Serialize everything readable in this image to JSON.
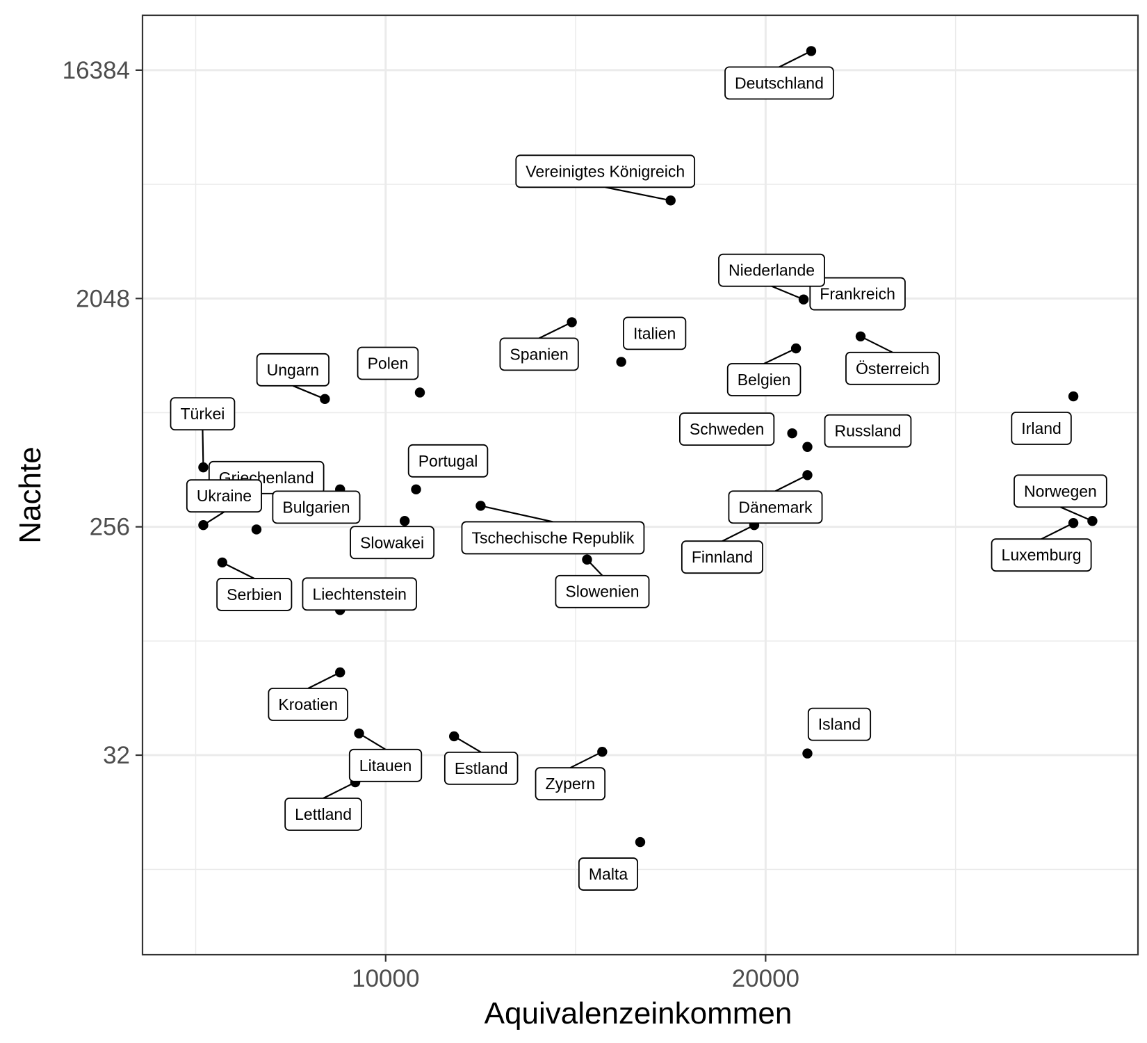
{
  "chart_data": {
    "type": "scatter",
    "title": "",
    "xlabel": "Aquivalenzeinkommen",
    "ylabel": "Nachte",
    "xlim": [
      3600,
      29800
    ],
    "ylim": [
      5.2,
      27000
    ],
    "y_scale": "log2",
    "x_ticks": [
      10000,
      20000
    ],
    "x_tick_labels": [
      "10000",
      "20000"
    ],
    "x_minor_ticks": [
      5000,
      15000,
      25000
    ],
    "y_ticks": [
      32,
      256,
      2048,
      16384
    ],
    "y_tick_labels": [
      "32",
      "256",
      "2048",
      "16384"
    ],
    "y_minor_ticks": [
      11.3,
      90.5,
      724,
      5793
    ],
    "grid": true,
    "point_color": "#000000",
    "grid_color": "#ebebeb",
    "points": [
      {
        "label": "Deutschland",
        "x": 21200,
        "y": 19500
      },
      {
        "label": "Vereinigtes Königreich",
        "x": 17500,
        "y": 5000
      },
      {
        "label": "Frankreich",
        "x": 20700,
        "y": 2600
      },
      {
        "label": "Italien",
        "x": 16200,
        "y": 1150
      },
      {
        "label": "Niederlande",
        "x": 21000,
        "y": 2030
      },
      {
        "label": "Spanien",
        "x": 14900,
        "y": 1650
      },
      {
        "label": "Belgien",
        "x": 20800,
        "y": 1300
      },
      {
        "label": "Österreich",
        "x": 22500,
        "y": 1450
      },
      {
        "label": "Ungarn",
        "x": 8400,
        "y": 820
      },
      {
        "label": "Polen",
        "x": 10900,
        "y": 870
      },
      {
        "label": "Türkei",
        "x": 5200,
        "y": 440
      },
      {
        "label": "Griechenland",
        "x": 8800,
        "y": 360
      },
      {
        "label": "Portugal",
        "x": 10800,
        "y": 360
      },
      {
        "label": "Schweden",
        "x": 20700,
        "y": 600
      },
      {
        "label": "Russland",
        "x": 21100,
        "y": 530
      },
      {
        "label": "Dänemark",
        "x": 21100,
        "y": 410
      },
      {
        "label": "Irland",
        "x": 28100,
        "y": 840
      },
      {
        "label": "Tschechische Republik",
        "x": 12500,
        "y": 310
      },
      {
        "label": "Bulgarien",
        "x": 6600,
        "y": 250
      },
      {
        "label": "Ukraine",
        "x": 5200,
        "y": 260
      },
      {
        "label": "Slowakei",
        "x": 10500,
        "y": 270
      },
      {
        "label": "Serbien",
        "x": 5700,
        "y": 185
      },
      {
        "label": "Finnland",
        "x": 19700,
        "y": 260
      },
      {
        "label": "Norwegen",
        "x": 28600,
        "y": 270
      },
      {
        "label": "Luxemburg",
        "x": 28100,
        "y": 265
      },
      {
        "label": "Slowenien",
        "x": 15300,
        "y": 190
      },
      {
        "label": "Liechtenstein",
        "x": 8800,
        "y": 120
      },
      {
        "label": "Kroatien",
        "x": 8800,
        "y": 68
      },
      {
        "label": "Island",
        "x": 21100,
        "y": 32.5
      },
      {
        "label": "Zypern",
        "x": 15700,
        "y": 33
      },
      {
        "label": "Litauen",
        "x": 9300,
        "y": 39
      },
      {
        "label": "Estland",
        "x": 11800,
        "y": 38
      },
      {
        "label": "Lettland",
        "x": 9200,
        "y": 25
      },
      {
        "label": "Malta",
        "x": 16700,
        "y": 14.5
      }
    ]
  }
}
